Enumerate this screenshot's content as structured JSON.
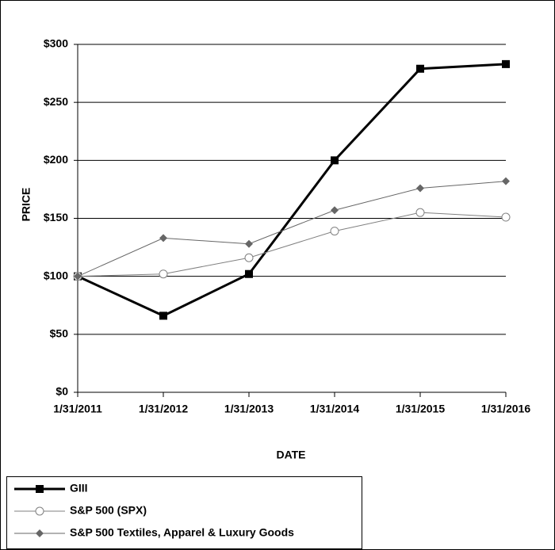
{
  "chart_data": {
    "type": "line",
    "ylabel": "PRICE",
    "xlabel": "DATE",
    "categories": [
      "1/31/2011",
      "1/31/2012",
      "1/31/2013",
      "1/31/2014",
      "1/31/2015",
      "1/31/2016"
    ],
    "series": [
      {
        "name": "GIII",
        "color": "#000000",
        "marker": "square",
        "values": [
          100,
          66,
          102,
          200,
          279,
          283
        ]
      },
      {
        "name": "S&P 500 (SPX)",
        "color": "#808080",
        "marker": "circle",
        "values": [
          100,
          102,
          116,
          139,
          155,
          151
        ]
      },
      {
        "name": "S&P 500 Textiles, Apparel & Luxury Goods",
        "color": "#666666",
        "marker": "diamond",
        "values": [
          100,
          133,
          128,
          157,
          176,
          182
        ]
      }
    ],
    "ylim": [
      0,
      300
    ],
    "yticks": [
      {
        "value": 0,
        "label": "$0"
      },
      {
        "value": 50,
        "label": "$50"
      },
      {
        "value": 100,
        "label": "$100"
      },
      {
        "value": 150,
        "label": "$150"
      },
      {
        "value": 200,
        "label": "$200"
      },
      {
        "value": 250,
        "label": "$250"
      },
      {
        "value": 300,
        "label": "$300"
      }
    ],
    "grid": true,
    "legend": "bottom-left"
  }
}
